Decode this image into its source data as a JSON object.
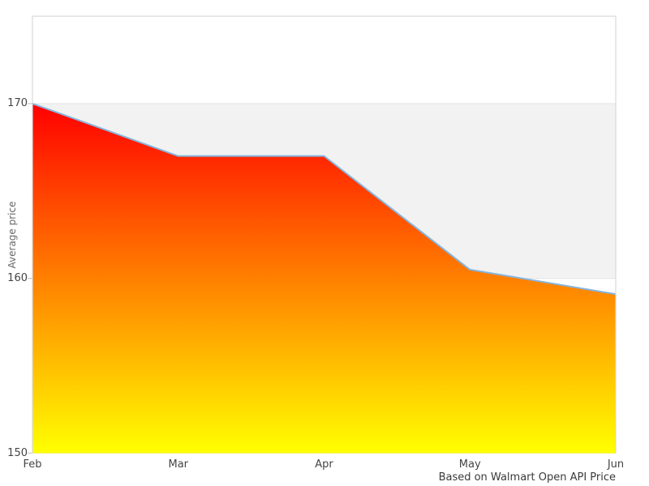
{
  "chart": {
    "ylabel": "Average price",
    "caption": "Based on Walmart Open API Price"
  },
  "chart_data": {
    "type": "area",
    "title": "",
    "categories": [
      "Feb",
      "Mar",
      "Apr",
      "May",
      "Jun"
    ],
    "values": [
      170,
      167,
      167,
      160.5,
      159.1
    ],
    "xlabel": "",
    "ylabel": "Average price",
    "ylim": [
      150,
      175
    ],
    "yticks": [
      150,
      160,
      170
    ],
    "ytick_labels": [
      "150",
      "160",
      "170"
    ],
    "caption": "Based on Walmart Open API Price",
    "legend": "none",
    "grid": "horizontal-bands",
    "band_ranges": [
      [
        160,
        170
      ]
    ],
    "colors": {
      "area_gradient_top": "#ff0000",
      "area_gradient_bottom": "#ffff00",
      "line": "#87b5dd",
      "band": "#f2f2f2",
      "gridline": "#e3e3e3",
      "frame": "#d9d9d9",
      "tick": "#c9c9c9",
      "tick_label": "#444444",
      "axis_title": "#666666",
      "caption_text": "#3a3a3a"
    }
  }
}
